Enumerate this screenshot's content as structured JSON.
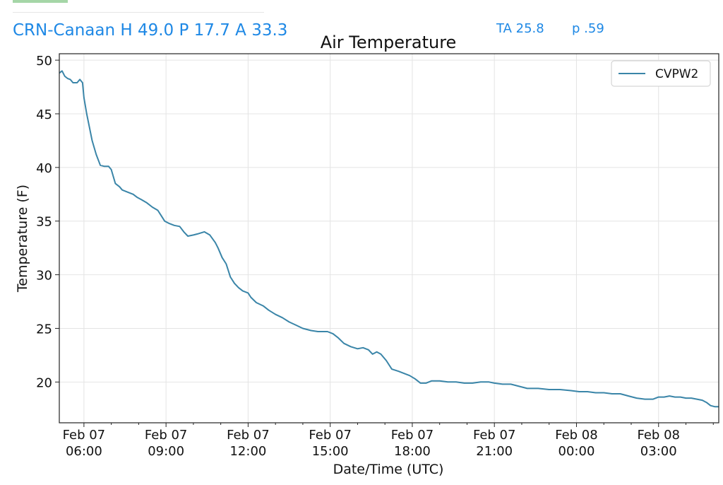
{
  "header": {
    "station_title": "CRN-Canaan H 49.0 P 17.7 A 33.3",
    "ta_label": "TA 25.8",
    "p_label": "p .59"
  },
  "colors": {
    "accent_text": "#1e88e5",
    "series_line": "#3a85a8",
    "grid": "#e4e4e4"
  },
  "chart_data": {
    "type": "line",
    "title": "Air Temperature",
    "xlabel": "Date/Time (UTC)",
    "ylabel": "Temperature (F)",
    "x_units": "hours since Feb 07 00:00 UTC",
    "xlim": [
      5.1,
      29.2
    ],
    "ylim": [
      16.2,
      50.6
    ],
    "grid": true,
    "legend_position": "top-right",
    "y_ticks": [
      20,
      25,
      30,
      35,
      40,
      45,
      50
    ],
    "x_ticks": [
      {
        "x": 6,
        "line1": "Feb 07",
        "line2": "06:00"
      },
      {
        "x": 9,
        "line1": "Feb 07",
        "line2": "09:00"
      },
      {
        "x": 12,
        "line1": "Feb 07",
        "line2": "12:00"
      },
      {
        "x": 15,
        "line1": "Feb 07",
        "line2": "15:00"
      },
      {
        "x": 18,
        "line1": "Feb 07",
        "line2": "18:00"
      },
      {
        "x": 21,
        "line1": "Feb 07",
        "line2": "21:00"
      },
      {
        "x": 24,
        "line1": "Feb 08",
        "line2": "00:00"
      },
      {
        "x": 27,
        "line1": "Feb 08",
        "line2": "03:00"
      }
    ],
    "series": [
      {
        "name": "CVPW2",
        "points": [
          [
            5.1,
            48.8
          ],
          [
            5.2,
            49.0
          ],
          [
            5.3,
            48.5
          ],
          [
            5.4,
            48.3
          ],
          [
            5.5,
            48.2
          ],
          [
            5.6,
            47.9
          ],
          [
            5.75,
            47.9
          ],
          [
            5.85,
            48.2
          ],
          [
            5.95,
            47.9
          ],
          [
            6.0,
            46.5
          ],
          [
            6.1,
            45.0
          ],
          [
            6.3,
            42.5
          ],
          [
            6.45,
            41.2
          ],
          [
            6.6,
            40.2
          ],
          [
            6.75,
            40.1
          ],
          [
            6.9,
            40.1
          ],
          [
            7.0,
            39.8
          ],
          [
            7.15,
            38.5
          ],
          [
            7.3,
            38.2
          ],
          [
            7.4,
            37.9
          ],
          [
            7.6,
            37.7
          ],
          [
            7.8,
            37.5
          ],
          [
            7.95,
            37.2
          ],
          [
            8.1,
            37.0
          ],
          [
            8.3,
            36.7
          ],
          [
            8.5,
            36.3
          ],
          [
            8.7,
            36.0
          ],
          [
            8.8,
            35.6
          ],
          [
            8.95,
            35.0
          ],
          [
            9.1,
            34.8
          ],
          [
            9.3,
            34.6
          ],
          [
            9.5,
            34.5
          ],
          [
            9.65,
            34.0
          ],
          [
            9.8,
            33.6
          ],
          [
            10.0,
            33.7
          ],
          [
            10.15,
            33.8
          ],
          [
            10.4,
            34.0
          ],
          [
            10.6,
            33.7
          ],
          [
            10.8,
            33.0
          ],
          [
            10.9,
            32.5
          ],
          [
            11.05,
            31.6
          ],
          [
            11.2,
            31.0
          ],
          [
            11.35,
            29.8
          ],
          [
            11.5,
            29.2
          ],
          [
            11.65,
            28.8
          ],
          [
            11.8,
            28.5
          ],
          [
            12.0,
            28.3
          ],
          [
            12.1,
            27.9
          ],
          [
            12.3,
            27.4
          ],
          [
            12.55,
            27.1
          ],
          [
            12.75,
            26.7
          ],
          [
            13.0,
            26.3
          ],
          [
            13.25,
            26.0
          ],
          [
            13.5,
            25.6
          ],
          [
            13.75,
            25.3
          ],
          [
            14.0,
            25.0
          ],
          [
            14.3,
            24.8
          ],
          [
            14.55,
            24.7
          ],
          [
            14.75,
            24.7
          ],
          [
            14.9,
            24.7
          ],
          [
            15.1,
            24.5
          ],
          [
            15.3,
            24.1
          ],
          [
            15.5,
            23.6
          ],
          [
            15.75,
            23.3
          ],
          [
            16.0,
            23.1
          ],
          [
            16.2,
            23.2
          ],
          [
            16.4,
            23.0
          ],
          [
            16.55,
            22.6
          ],
          [
            16.7,
            22.8
          ],
          [
            16.85,
            22.6
          ],
          [
            17.05,
            22.0
          ],
          [
            17.25,
            21.2
          ],
          [
            17.5,
            21.0
          ],
          [
            17.7,
            20.8
          ],
          [
            17.9,
            20.6
          ],
          [
            18.1,
            20.3
          ],
          [
            18.3,
            19.9
          ],
          [
            18.5,
            19.9
          ],
          [
            18.7,
            20.1
          ],
          [
            19.0,
            20.1
          ],
          [
            19.3,
            20.0
          ],
          [
            19.6,
            20.0
          ],
          [
            19.9,
            19.9
          ],
          [
            20.2,
            19.9
          ],
          [
            20.5,
            20.0
          ],
          [
            20.8,
            20.0
          ],
          [
            21.0,
            19.9
          ],
          [
            21.3,
            19.8
          ],
          [
            21.6,
            19.8
          ],
          [
            21.9,
            19.6
          ],
          [
            22.2,
            19.4
          ],
          [
            22.6,
            19.4
          ],
          [
            23.0,
            19.3
          ],
          [
            23.4,
            19.3
          ],
          [
            23.8,
            19.2
          ],
          [
            24.1,
            19.1
          ],
          [
            24.4,
            19.1
          ],
          [
            24.7,
            19.0
          ],
          [
            25.0,
            19.0
          ],
          [
            25.3,
            18.9
          ],
          [
            25.6,
            18.9
          ],
          [
            25.9,
            18.7
          ],
          [
            26.2,
            18.5
          ],
          [
            26.5,
            18.4
          ],
          [
            26.8,
            18.4
          ],
          [
            27.0,
            18.6
          ],
          [
            27.2,
            18.6
          ],
          [
            27.4,
            18.7
          ],
          [
            27.6,
            18.6
          ],
          [
            27.8,
            18.6
          ],
          [
            28.0,
            18.5
          ],
          [
            28.2,
            18.5
          ],
          [
            28.4,
            18.4
          ],
          [
            28.6,
            18.3
          ],
          [
            28.75,
            18.1
          ],
          [
            28.9,
            17.8
          ],
          [
            29.05,
            17.7
          ],
          [
            29.2,
            17.7
          ]
        ]
      }
    ]
  }
}
